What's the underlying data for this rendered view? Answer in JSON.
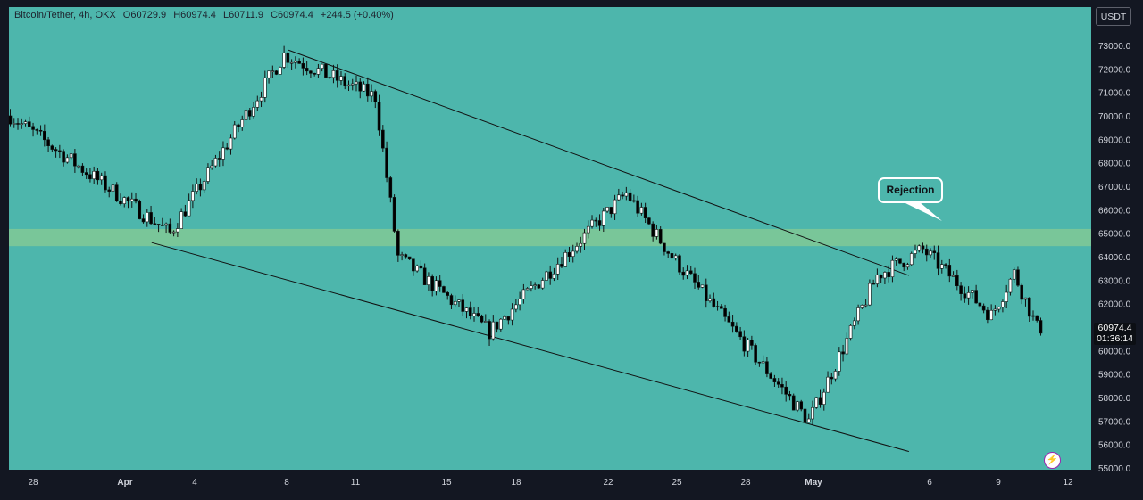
{
  "legend": {
    "symbol": "Bitcoin/Tether, 4h, OKX",
    "open": "O60729.9",
    "high": "H60974.4",
    "low": "L60711.9",
    "close": "C60974.4",
    "change": "+244.5 (+0.40%)"
  },
  "currency_button": "USDT",
  "last_price": {
    "price": "60974.4",
    "countdown": "01:36:14"
  },
  "annotation": "Rejection",
  "colors": {
    "background": "#4db6ac",
    "zone": "#81c995",
    "candle_up": "#ffffff",
    "candle_down": "#000000",
    "axis_panel": "#131722"
  },
  "icons": {
    "replay": "lightning-icon"
  },
  "chart_data": {
    "type": "candlestick",
    "title": "",
    "xlabel": "",
    "ylabel": "",
    "ylim": [
      55000,
      73800
    ],
    "grid": false,
    "y_ticks": [
      "55000.0",
      "56000.0",
      "57000.0",
      "58000.0",
      "59000.0",
      "60000.0",
      "61000.0",
      "62000.0",
      "63000.0",
      "64000.0",
      "65000.0",
      "66000.0",
      "67000.0",
      "68000.0",
      "69000.0",
      "70000.0",
      "71000.0",
      "72000.0",
      "73000.0"
    ],
    "x_ticks": [
      "28",
      "Apr",
      "4",
      "8",
      "11",
      "15",
      "18",
      "22",
      "25",
      "28",
      "May",
      "6",
      "9",
      "12"
    ],
    "zone": {
      "low": 64450,
      "high": 65180
    },
    "trendlines": [
      {
        "name": "upper",
        "from": [
          "Apr 8",
          72800
        ],
        "to": [
          "May 5",
          63200
        ]
      },
      {
        "name": "lower",
        "from": [
          "Apr 2",
          64600
        ],
        "to": [
          "May 5",
          55700
        ]
      }
    ],
    "annotation_point": [
      "May 6",
      65450
    ],
    "key_points": [
      {
        "date": "Mar 27",
        "close": 70000
      },
      {
        "date": "Apr 3",
        "close": 65000
      },
      {
        "date": "Apr 8",
        "close": 72600
      },
      {
        "date": "Apr 12",
        "close": 70800
      },
      {
        "date": "Apr 13",
        "close": 64000
      },
      {
        "date": "Apr 17",
        "close": 60800
      },
      {
        "date": "Apr 23",
        "close": 66700
      },
      {
        "date": "Apr 25",
        "close": 64000
      },
      {
        "date": "May 1",
        "close": 57000
      },
      {
        "date": "May 4",
        "close": 63200
      },
      {
        "date": "May 6",
        "close": 64300
      },
      {
        "date": "May 9",
        "close": 61500
      },
      {
        "date": "May 10",
        "close": 63300
      },
      {
        "date": "May 11",
        "close": 60974.4
      }
    ]
  }
}
